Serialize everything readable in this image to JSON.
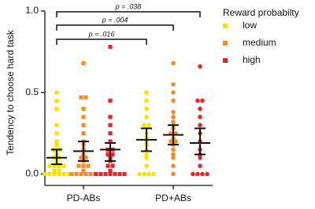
{
  "chart_data": {
    "type": "dot",
    "y_label": "Tendency to choose hard task",
    "categories": [
      "PD-ABs",
      "PD+ABs"
    ],
    "markers": [
      "square",
      "circle"
    ],
    "ylim": [
      -0.07,
      1.0
    ],
    "yticks": [
      {
        "value": 0,
        "label": "0.0"
      },
      {
        "value": 0.5,
        "label": "0.5"
      },
      {
        "value": 1,
        "label": "1.0"
      }
    ],
    "legend_title": "Reward probabilty",
    "series": [
      {
        "name": "low",
        "color": "#f2e600",
        "values": [
          [
            0,
            0,
            0,
            0,
            0,
            0,
            0.02,
            0.02,
            0.05,
            0.05,
            0.05,
            0.05,
            0.08,
            0.1,
            0.1,
            0.12,
            0.15,
            0.15,
            0.18,
            0.2,
            0.25,
            0.3,
            0.4,
            0.45,
            0.5
          ],
          [
            0,
            0,
            0,
            0,
            0.05,
            0.1,
            0.12,
            0.15,
            0.18,
            0.2,
            0.22,
            0.25,
            0.3,
            0.3,
            0.35,
            0.4,
            0.45,
            0.5
          ]
        ],
        "means": [
          0.1,
          0.21
        ],
        "ci": [
          [
            0.06,
            0.15
          ],
          [
            0.14,
            0.28
          ]
        ]
      },
      {
        "name": "medium",
        "color": "#f28c28",
        "values": [
          [
            0,
            0,
            0,
            0,
            0,
            0,
            0.02,
            0.05,
            0.05,
            0.05,
            0.08,
            0.1,
            0.1,
            0.12,
            0.15,
            0.18,
            0.2,
            0.25,
            0.3,
            0.35,
            0.4,
            0.47,
            0.47,
            0.68
          ],
          [
            0,
            0.05,
            0.1,
            0.12,
            0.15,
            0.18,
            0.2,
            0.2,
            0.22,
            0.25,
            0.25,
            0.28,
            0.3,
            0.32,
            0.35,
            0.38,
            0.45,
            0.5,
            0.55,
            0.68
          ]
        ],
        "means": [
          0.14,
          0.24
        ],
        "ci": [
          [
            0.08,
            0.2
          ],
          [
            0.18,
            0.3
          ]
        ]
      },
      {
        "name": "high",
        "color": "#e3262a",
        "values": [
          [
            0,
            0,
            0,
            0,
            0,
            0,
            0,
            0.02,
            0.05,
            0.05,
            0.08,
            0.1,
            0.12,
            0.12,
            0.15,
            0.15,
            0.2,
            0.25,
            0.3,
            0.35,
            0.45,
            0.78
          ],
          [
            0,
            0,
            0,
            0,
            0.05,
            0.1,
            0.12,
            0.15,
            0.2,
            0.25,
            0.3,
            0.35,
            0.4,
            0.45,
            0.45,
            0.66
          ]
        ],
        "means": [
          0.15,
          0.19
        ],
        "ci": [
          [
            0.08,
            0.19
          ],
          [
            0.12,
            0.28
          ]
        ]
      }
    ],
    "annotations": [
      {
        "text": "p = .016"
      },
      {
        "text": "p = .004"
      },
      {
        "text": "p = .038"
      }
    ]
  }
}
